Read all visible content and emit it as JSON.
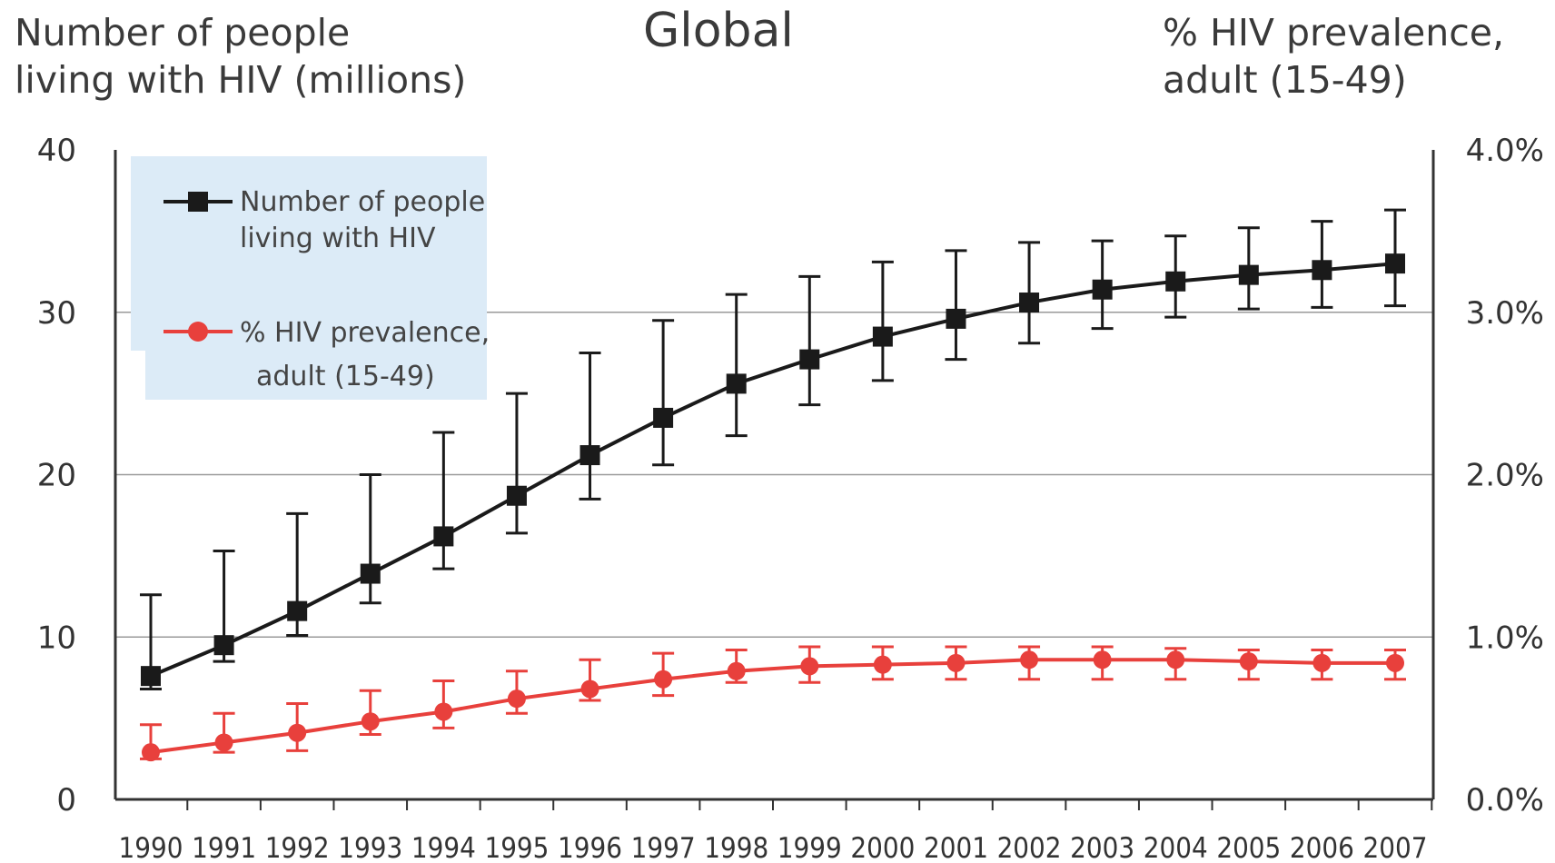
{
  "header": {
    "left_title_line1": "Number of people",
    "left_title_line2": "living with HIV (millions)",
    "center_title": "Global",
    "right_title_line1": "% HIV prevalence,",
    "right_title_line2": "adult (15-49)"
  },
  "legend": {
    "number_line1": "Number of people",
    "number_line2": "living with HIV",
    "prevalence_line1": "% HIV prevalence,",
    "prevalence_line2": "adult (15-49)"
  },
  "chart_data": {
    "type": "line",
    "title": "Global",
    "x": [
      "1990",
      "1991",
      "1992",
      "1993",
      "1994",
      "1995",
      "1996",
      "1997",
      "1998",
      "1999",
      "2000",
      "2001",
      "2002",
      "2003",
      "2004",
      "2005",
      "2006",
      "2007"
    ],
    "y_left_label": "Number of people living with HIV (millions)",
    "y_right_label": "% HIV prevalence, adult (15-49)",
    "ylim_left": [
      0,
      40
    ],
    "ylim_right": [
      0,
      4
    ],
    "y_left_ticks": [
      "0",
      "10",
      "20",
      "30",
      "40"
    ],
    "y_right_ticks": [
      "0.0%",
      "1.0%",
      "2.0%",
      "3.0%",
      "4.0%"
    ],
    "grid": true,
    "legend_position": "top-left",
    "series": [
      {
        "name": "Number of people living with HIV",
        "axis": "left",
        "color": "#1a1a1a",
        "marker": "square",
        "values": [
          7.6,
          9.5,
          11.6,
          13.9,
          16.2,
          18.7,
          21.2,
          23.5,
          25.6,
          27.1,
          28.5,
          29.6,
          30.6,
          31.4,
          31.9,
          32.3,
          32.6,
          33.0
        ],
        "lower": [
          6.8,
          8.5,
          10.1,
          12.1,
          14.2,
          16.4,
          18.5,
          20.6,
          22.4,
          24.3,
          25.8,
          27.1,
          28.1,
          29.0,
          29.7,
          30.2,
          30.3,
          30.4
        ],
        "upper": [
          12.6,
          15.3,
          17.6,
          20.0,
          22.6,
          25.0,
          27.5,
          29.5,
          31.1,
          32.2,
          33.1,
          33.8,
          34.3,
          34.4,
          34.7,
          35.2,
          35.6,
          36.3
        ]
      },
      {
        "name": "% HIV prevalence, adult (15-49)",
        "axis": "right",
        "color": "#e8403c",
        "marker": "circle",
        "values": [
          0.29,
          0.35,
          0.41,
          0.48,
          0.54,
          0.62,
          0.68,
          0.74,
          0.79,
          0.82,
          0.83,
          0.84,
          0.86,
          0.86,
          0.86,
          0.85,
          0.84,
          0.84
        ],
        "lower": [
          0.25,
          0.29,
          0.3,
          0.4,
          0.44,
          0.53,
          0.61,
          0.64,
          0.72,
          0.72,
          0.74,
          0.74,
          0.74,
          0.74,
          0.74,
          0.74,
          0.74,
          0.74
        ],
        "upper": [
          0.46,
          0.53,
          0.59,
          0.67,
          0.73,
          0.79,
          0.86,
          0.9,
          0.92,
          0.94,
          0.94,
          0.94,
          0.94,
          0.94,
          0.93,
          0.92,
          0.92,
          0.92
        ]
      }
    ]
  }
}
